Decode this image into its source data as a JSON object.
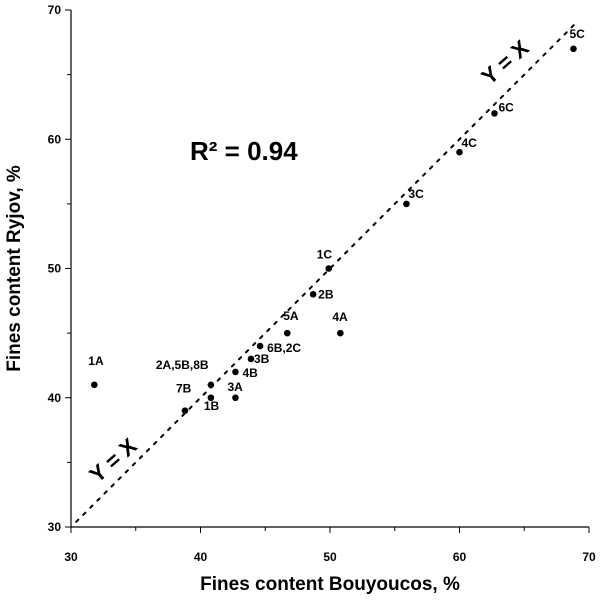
{
  "chart_data": {
    "type": "scatter",
    "xlabel": "Fines content Bouyoucos, %",
    "ylabel": "Fines content Ryjov, %",
    "xlim": [
      30,
      70
    ],
    "ylim": [
      30,
      70
    ],
    "xticks": [
      "30",
      "40",
      "50",
      "60",
      "70"
    ],
    "yticks": [
      "30",
      "40",
      "50",
      "60",
      "70"
    ],
    "grid": false,
    "annotation": "R² = 0.94",
    "reference_line": {
      "label_upper": "Y = X",
      "label_lower": "Y = X",
      "style": "dotted"
    },
    "points": [
      {
        "label": "1A",
        "x": 31.8,
        "y": 41
      },
      {
        "label": "2A,5B,8B",
        "x": 40.8,
        "y": 41
      },
      {
        "label": "7B",
        "x": 38.8,
        "y": 39
      },
      {
        "label": "1B",
        "x": 40.8,
        "y": 40
      },
      {
        "label": "3A",
        "x": 42.7,
        "y": 40
      },
      {
        "label": "4B",
        "x": 42.7,
        "y": 42
      },
      {
        "label": "3B",
        "x": 43.9,
        "y": 43
      },
      {
        "label": "6B,2C",
        "x": 44.6,
        "y": 44
      },
      {
        "label": "5A",
        "x": 46.7,
        "y": 45
      },
      {
        "label": "4A",
        "x": 50.8,
        "y": 45
      },
      {
        "label": "2B",
        "x": 48.7,
        "y": 48
      },
      {
        "label": "1C",
        "x": 49.9,
        "y": 50
      },
      {
        "label": "3C",
        "x": 55.9,
        "y": 55
      },
      {
        "label": "4C",
        "x": 60.0,
        "y": 59
      },
      {
        "label": "6C",
        "x": 62.7,
        "y": 62
      },
      {
        "label": "5C",
        "x": 68.8,
        "y": 67
      }
    ]
  }
}
